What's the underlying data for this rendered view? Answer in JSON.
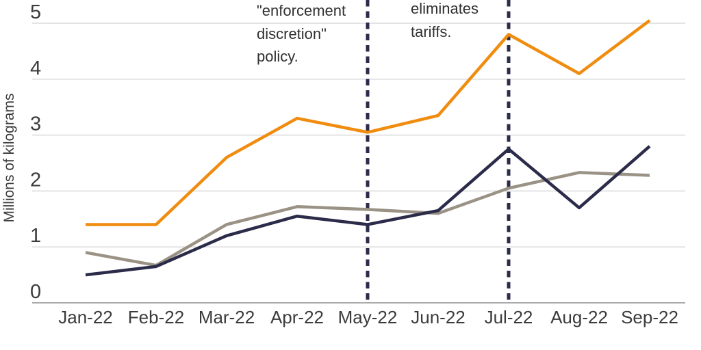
{
  "chart_data": {
    "type": "line",
    "title": "",
    "xlabel": "",
    "ylabel": "Millions of kilograms",
    "categories": [
      "Jan-22",
      "Feb-22",
      "Mar-22",
      "Apr-22",
      "May-22",
      "Jun-22",
      "Jul-22",
      "Aug-22",
      "Sep-22"
    ],
    "y_ticks": [
      0,
      1,
      2,
      3,
      4,
      5
    ],
    "ylim": [
      0,
      5.15
    ],
    "grid": "horizontal-only",
    "legend": "none",
    "series": [
      {
        "name": "orange-series",
        "color": "#F08C0F",
        "values": [
          1.4,
          1.4,
          2.6,
          3.3,
          3.05,
          3.35,
          4.8,
          4.1,
          5.05
        ]
      },
      {
        "name": "navy-series",
        "color": "#2B2B4A",
        "values": [
          0.5,
          0.65,
          1.2,
          1.55,
          1.4,
          1.65,
          2.75,
          1.7,
          2.8
        ]
      },
      {
        "name": "gray-series",
        "color": "#9A9285",
        "values": [
          0.9,
          0.67,
          1.4,
          1.72,
          1.67,
          1.6,
          2.05,
          2.33,
          2.28
        ]
      }
    ],
    "event_lines": [
      {
        "x_category": "May-22",
        "style": "dashed",
        "color": "#2B2B4A",
        "label_lines": [
          "\"enforcement",
          "discretion\"",
          "policy."
        ]
      },
      {
        "x_category": "Jul-22",
        "style": "dashed",
        "color": "#2B2B4A",
        "label_lines": [
          "eliminates",
          "tariffs."
        ]
      }
    ]
  },
  "style": {
    "background": "#FFFFFF",
    "grid_color": "#DADADA",
    "axis_color": "#ABABAB",
    "tick_label_color": "#3B3B3B",
    "annotation_color": "#303030"
  }
}
